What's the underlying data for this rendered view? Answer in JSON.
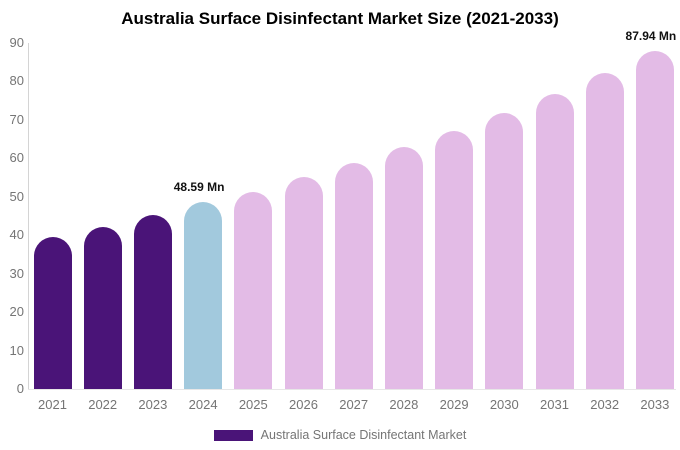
{
  "title": "Australia Surface Disinfectant Market Size (2021-2033)",
  "legend": {
    "label": "Australia Surface Disinfectant Market",
    "swatch_color": "#4a1478"
  },
  "colors": {
    "historical": "#4a1478",
    "base_year": "#a2c9dd",
    "forecast": "#e3bbe6",
    "axis_text": "#757575",
    "axis_line": "#d4d4d4",
    "data_label": "#111111"
  },
  "chart_data": {
    "type": "bar",
    "title": "Australia Surface Disinfectant Market Size (2021-2033)",
    "unit": "Mn",
    "categories": [
      "2021",
      "2022",
      "2023",
      "2024",
      "2025",
      "2026",
      "2027",
      "2028",
      "2029",
      "2030",
      "2031",
      "2032",
      "2033"
    ],
    "values": [
      39.6,
      42.1,
      45.3,
      48.59,
      51.3,
      55.2,
      58.7,
      62.9,
      67.1,
      71.7,
      76.7,
      82.1,
      87.94
    ],
    "bar_roles": [
      "historical",
      "historical",
      "historical",
      "base_year",
      "forecast",
      "forecast",
      "forecast",
      "forecast",
      "forecast",
      "forecast",
      "forecast",
      "forecast",
      "forecast"
    ],
    "bar_labels": {
      "2024": "48.59 Mn",
      "2033": "87.94 Mn"
    },
    "xlabel": "",
    "ylabel": "",
    "ylim": [
      0,
      90
    ],
    "yticks": [
      0,
      10,
      20,
      30,
      40,
      50,
      60,
      70,
      80,
      90
    ],
    "grid": false,
    "legend_position": "bottom",
    "legend_entries": [
      "Australia Surface Disinfectant Market"
    ]
  }
}
